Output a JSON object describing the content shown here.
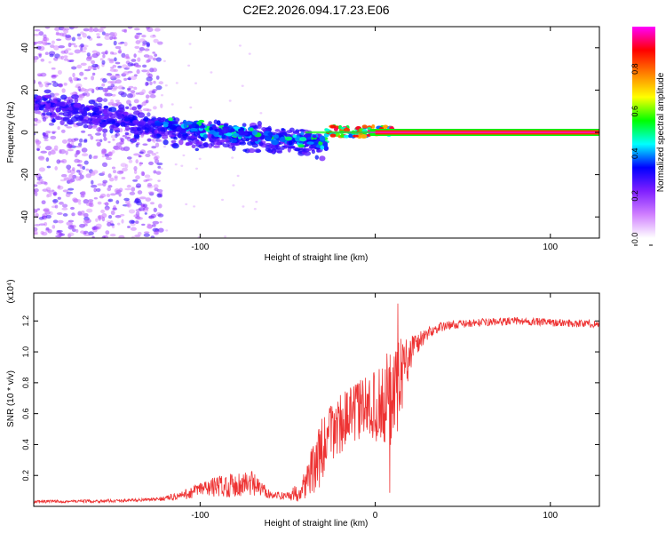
{
  "title": "C2E2.2026.094.17.23.E06",
  "chart_data": [
    {
      "type": "heatmap",
      "xlabel": "Height of straight line (km)",
      "ylabel": "Frequency (Hz)",
      "xlim": [
        -195,
        128
      ],
      "ylim": [
        -50,
        50
      ],
      "xticks": [
        -100,
        0,
        100
      ],
      "xtick_labels": [
        "-100",
        "",
        "100"
      ],
      "yticks": [
        -40,
        -20,
        0,
        20,
        40
      ],
      "ytick_labels": [
        "-40",
        "-20",
        "0",
        "20",
        "40"
      ],
      "colorbar": {
        "label": "Normalized spectral amplitude",
        "range": [
          0,
          1
        ],
        "ticks": [
          0,
          0.2,
          0.4,
          0.6,
          0.8
        ],
        "tick_labels": [
          "0.0",
          "0.2",
          "0.4",
          "0.6",
          "0.8"
        ],
        "colors": [
          "#ffffff",
          "#d080ff",
          "#8020ff",
          "#0000ff",
          "#00ffff",
          "#00ff00",
          "#ffff00",
          "#ff8000",
          "#ff0000",
          "#ff00ff"
        ]
      },
      "regions": [
        {
          "name": "noise scatter",
          "x": [
            -195,
            -122
          ],
          "freq": [
            -50,
            50
          ],
          "amplitude": 0.1
        },
        {
          "name": "wandering band",
          "x": [
            -195,
            -30
          ],
          "freq_center": [
            14,
            0,
            -5
          ],
          "amplitude": 0.25
        },
        {
          "name": "onset blobs",
          "x": [
            -125,
            -28
          ],
          "freq": [
            -8,
            8
          ],
          "amplitude": 0.4
        },
        {
          "name": "stabilising tone",
          "x": [
            -28,
            12
          ],
          "freq": [
            -2,
            3
          ],
          "amplitude": 0.75
        },
        {
          "name": "carrier line",
          "x": [
            12,
            128
          ],
          "freq": 0,
          "amplitude": 1.0
        }
      ]
    },
    {
      "type": "line",
      "xlabel": "Height of straight line (km)",
      "ylabel": "SNR (10 * v/v)",
      "y_multiplier": "(x10⁴)",
      "xlim": [
        -195,
        128
      ],
      "ylim": [
        0,
        1.38
      ],
      "xticks": [
        -100,
        0,
        100
      ],
      "xtick_labels": [
        "-100",
        "0",
        "100"
      ],
      "yticks": [
        0.2,
        0.4,
        0.6,
        0.8,
        1.0,
        1.2
      ],
      "ytick_labels": [
        "0.2",
        "0.4",
        "0.6",
        "0.8",
        "1.0",
        "1.2"
      ],
      "series": [
        {
          "name": "SNR",
          "color": "#ee3333",
          "x": [
            -195,
            -150,
            -125,
            -110,
            -100,
            -90,
            -80,
            -72,
            -65,
            -58,
            -50,
            -44,
            -40,
            -36,
            -33,
            -30,
            -27,
            -24,
            -20,
            -15,
            -10,
            -5,
            0,
            5,
            10,
            15,
            20,
            25,
            30,
            35,
            40,
            50,
            60,
            80,
            100,
            128
          ],
          "values": [
            0.03,
            0.035,
            0.045,
            0.07,
            0.11,
            0.13,
            0.14,
            0.15,
            0.11,
            0.07,
            0.07,
            0.09,
            0.15,
            0.23,
            0.3,
            0.36,
            0.43,
            0.5,
            0.54,
            0.58,
            0.62,
            0.65,
            0.65,
            0.66,
            0.7,
            0.85,
            1.0,
            1.07,
            1.12,
            1.15,
            1.17,
            1.18,
            1.19,
            1.2,
            1.19,
            1.18
          ],
          "noise": [
            0.01,
            0.01,
            0.01,
            0.03,
            0.05,
            0.07,
            0.08,
            0.1,
            0.05,
            0.02,
            0.03,
            0.06,
            0.1,
            0.16,
            0.2,
            0.22,
            0.22,
            0.22,
            0.2,
            0.18,
            0.2,
            0.2,
            0.22,
            0.3,
            0.35,
            0.25,
            0.12,
            0.08,
            0.04,
            0.03,
            0.03,
            0.025,
            0.025,
            0.025,
            0.025,
            0.025
          ]
        }
      ]
    }
  ]
}
